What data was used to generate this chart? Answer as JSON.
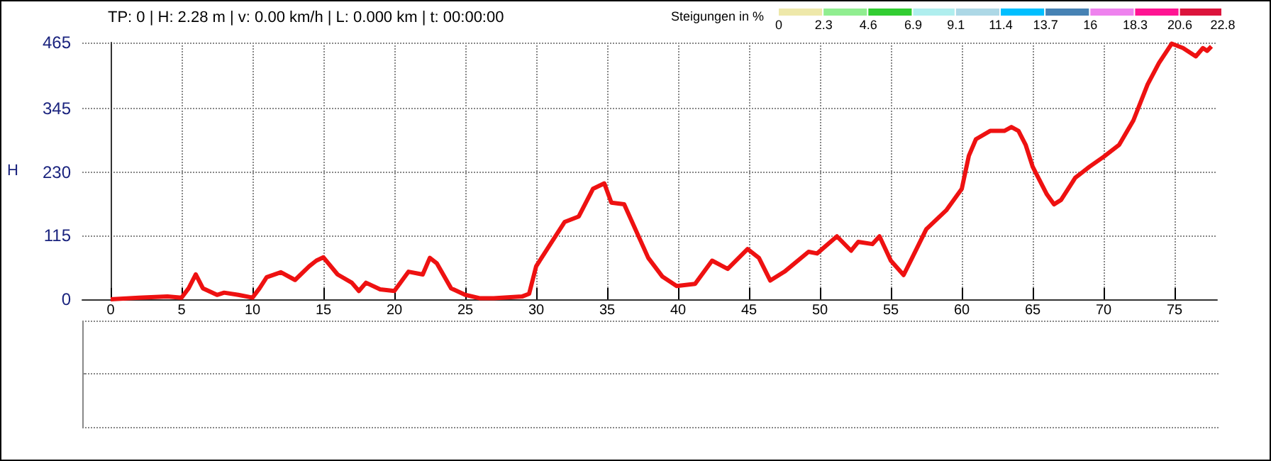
{
  "chart_data": {
    "type": "line",
    "subtitle": "TP: 0 | H: 2.28 m | v: 0.00 km/h | L: 0.000 km | t: 00:00:00",
    "ylabel": "H",
    "legend_title": "Steigungen in %",
    "clim": [
      0,
      22.8
    ],
    "cticks": [
      0,
      2.3,
      4.6,
      6.9,
      9.1,
      11.4,
      13.7,
      16,
      18.3,
      20.6,
      22.8
    ],
    "xlim": [
      -2,
      78
    ],
    "xticks": [
      0,
      5,
      10,
      15,
      20,
      25,
      30,
      35,
      40,
      45,
      50,
      55,
      60,
      65,
      70,
      75
    ],
    "ylim": [
      0,
      465
    ],
    "yticks": [
      0,
      115,
      230,
      345,
      465
    ],
    "grid": true,
    "marker": "none",
    "line_style": "solid",
    "series": [
      {
        "color": "#ee1111",
        "x": [
          0,
          2,
          4,
          5,
          5.5,
          6,
          6.5,
          7.5,
          8,
          9,
          10,
          10.5,
          11,
          12,
          13,
          14,
          14.5,
          15,
          16,
          17,
          17.5,
          18,
          19,
          20,
          21,
          22,
          22.5,
          23,
          24,
          25,
          26,
          27,
          29,
          29.5,
          30,
          31,
          32,
          33,
          34,
          34.8,
          35.3,
          36.2,
          37.9,
          38.9,
          39.9,
          41.2,
          42.4,
          43.5,
          44.9,
          45.7,
          46.5,
          47.5,
          49.2,
          49.8,
          51.2,
          52.2,
          52.7,
          53.7,
          54.2,
          55,
          55.9,
          56.5,
          57.5,
          58.9,
          60,
          60.5,
          61,
          62,
          63,
          63.5,
          64,
          64.5,
          65,
          66,
          66.5,
          67,
          68,
          69,
          70,
          71.1,
          72.1,
          73.1,
          73.9,
          74.8,
          75.6,
          76.5,
          77,
          77.3,
          77.6
        ],
        "values": [
          0,
          3,
          5,
          3,
          20,
          45,
          20,
          8,
          12,
          8,
          3,
          20,
          40,
          49,
          35,
          60,
          70,
          76,
          45,
          30,
          15,
          30,
          18,
          15,
          50,
          45,
          75,
          65,
          20,
          8,
          2,
          2,
          5,
          10,
          60,
          100,
          140,
          150,
          200,
          210,
          175,
          172,
          75,
          41,
          24,
          28,
          70,
          55,
          91,
          75,
          34,
          50,
          86,
          83,
          114,
          88,
          104,
          100,
          114,
          70,
          44,
          75,
          127,
          161,
          200,
          260,
          290,
          305,
          305,
          312,
          305,
          280,
          240,
          190,
          172,
          180,
          220,
          240,
          258,
          280,
          324,
          389,
          428,
          463,
          455,
          440,
          455,
          450,
          458
        ]
      }
    ]
  }
}
